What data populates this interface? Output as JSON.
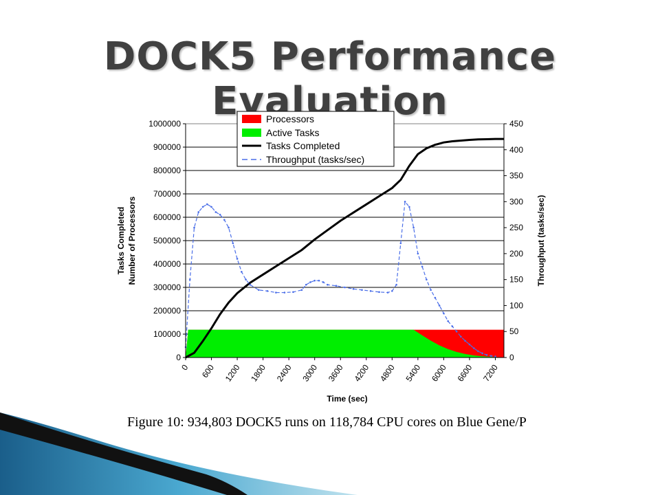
{
  "slide": {
    "title": "DOCK5 Performance Evaluation",
    "caption": "Figure 10: 934,803 DOCK5 runs on 118,784 CPU cores on Blue Gene/P"
  },
  "colors": {
    "processors": "#ff0000",
    "active_tasks": "#00ee00",
    "tasks_completed": "#000000",
    "throughput": "#4a6ee8",
    "title": "#404040"
  },
  "chart_data": {
    "type": "line",
    "xlabel": "Time (sec)",
    "ylabel_left": [
      "Tasks Completed",
      "Number of Processors"
    ],
    "ylabel_right": "Throughput (tasks/sec)",
    "xlim": [
      0,
      7400
    ],
    "ylim_left": [
      0,
      1000000
    ],
    "ylim_right": [
      0,
      450
    ],
    "x_ticks": [
      "0",
      "600",
      "1200",
      "1800",
      "2400",
      "3000",
      "3600",
      "4200",
      "4800",
      "5400",
      "6000",
      "6600",
      "7200"
    ],
    "y_left_ticks": [
      "0",
      "100000",
      "200000",
      "300000",
      "400000",
      "500000",
      "600000",
      "700000",
      "800000",
      "900000",
      "1000000"
    ],
    "y_right_ticks": [
      "0",
      "50",
      "100",
      "150",
      "200",
      "250",
      "300",
      "350",
      "400",
      "450"
    ],
    "grid": "horizontal",
    "legend": {
      "position": "top-center",
      "entries": [
        "Processors",
        "Active Tasks",
        "Tasks Completed",
        "Throughput (tasks/sec)"
      ]
    },
    "series": [
      {
        "name": "Processors",
        "kind": "area",
        "axis": "left",
        "x": [
          0,
          60,
          7400
        ],
        "y": [
          0,
          118784,
          118784
        ]
      },
      {
        "name": "Active Tasks",
        "kind": "area",
        "axis": "left",
        "x": [
          0,
          60,
          5300,
          5500,
          5700,
          5900,
          6100,
          6300,
          6500,
          6700,
          6900,
          7100,
          7300,
          7400
        ],
        "y": [
          0,
          118784,
          118784,
          95000,
          72000,
          52000,
          36000,
          24000,
          15000,
          9000,
          5000,
          2500,
          1000,
          500
        ]
      },
      {
        "name": "Tasks Completed",
        "kind": "line",
        "axis": "left",
        "x": [
          0,
          200,
          400,
          600,
          800,
          1000,
          1200,
          1500,
          1800,
          2100,
          2400,
          2700,
          3000,
          3300,
          3600,
          3900,
          4200,
          4500,
          4800,
          5000,
          5200,
          5400,
          5600,
          5800,
          6000,
          6200,
          6400,
          6600,
          6800,
          7000,
          7200,
          7400
        ],
        "y": [
          0,
          20000,
          70000,
          125000,
          185000,
          235000,
          275000,
          320000,
          355000,
          390000,
          425000,
          460000,
          505000,
          545000,
          585000,
          620000,
          655000,
          690000,
          725000,
          760000,
          820000,
          870000,
          895000,
          910000,
          920000,
          925000,
          928000,
          931000,
          933000,
          934000,
          934803,
          934803
        ]
      },
      {
        "name": "Throughput (tasks/sec)",
        "kind": "dashed-line",
        "axis": "right",
        "x": [
          0,
          100,
          200,
          300,
          400,
          500,
          600,
          700,
          800,
          900,
          1000,
          1100,
          1200,
          1300,
          1400,
          1500,
          1700,
          1900,
          2100,
          2300,
          2500,
          2700,
          2800,
          2900,
          3000,
          3100,
          3200,
          3300,
          3500,
          3700,
          3900,
          4100,
          4300,
          4500,
          4700,
          4800,
          4900,
          5000,
          5100,
          5200,
          5300,
          5400,
          5500,
          5600,
          5700,
          5800,
          5900,
          6000,
          6100,
          6200,
          6300,
          6400,
          6500,
          6600,
          6700,
          6800,
          6900,
          7000,
          7100,
          7200
        ],
        "y": [
          20,
          150,
          250,
          280,
          290,
          295,
          290,
          280,
          275,
          265,
          250,
          220,
          190,
          165,
          150,
          140,
          130,
          128,
          125,
          125,
          126,
          130,
          140,
          145,
          148,
          148,
          145,
          140,
          138,
          135,
          132,
          130,
          128,
          126,
          125,
          128,
          140,
          220,
          300,
          290,
          250,
          200,
          175,
          150,
          130,
          115,
          100,
          85,
          70,
          60,
          50,
          40,
          32,
          25,
          18,
          12,
          8,
          5,
          3,
          2
        ]
      }
    ]
  }
}
